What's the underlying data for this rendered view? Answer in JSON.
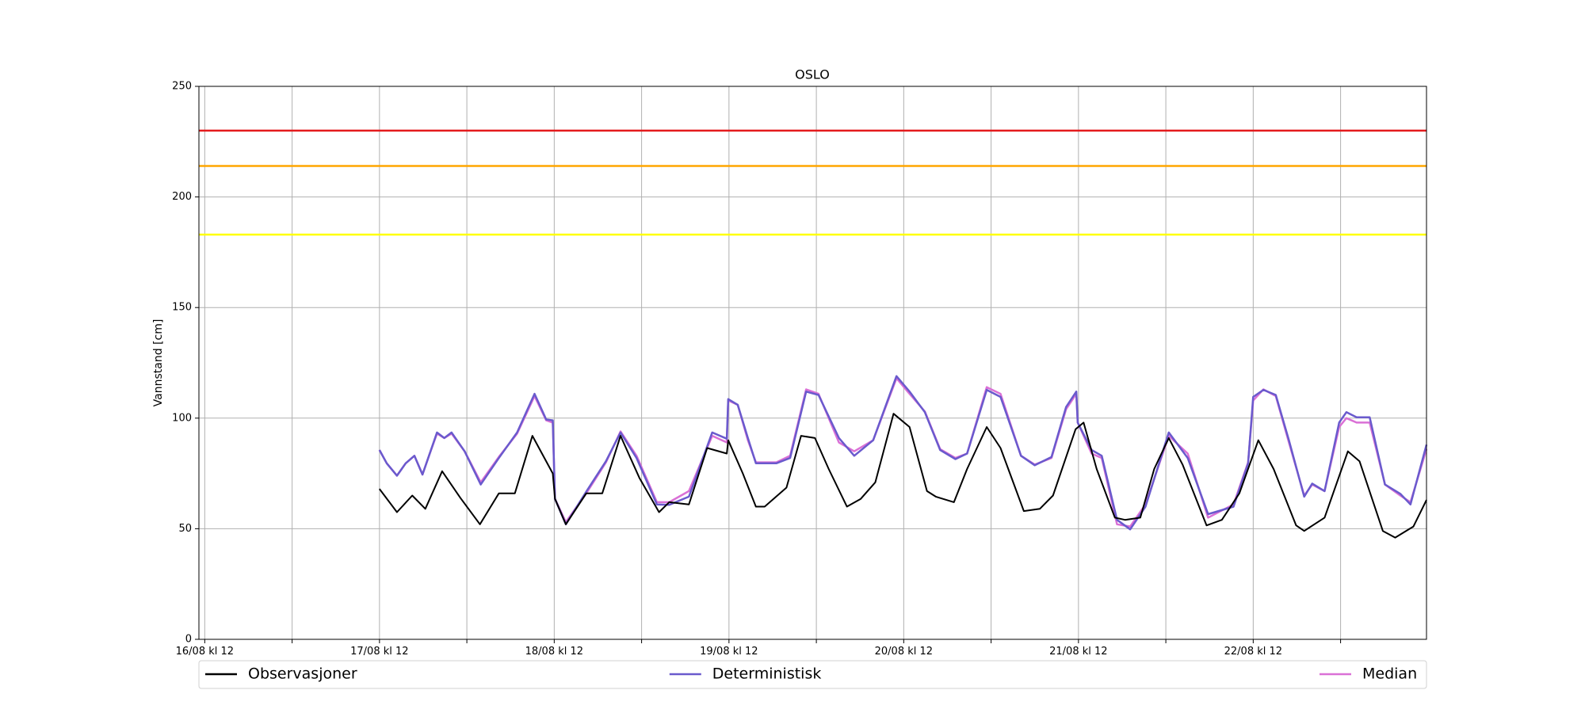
{
  "chart_data": {
    "type": "line",
    "title": "OSLO",
    "y_label": "Vannstand [cm]",
    "xlim": [
      -0.8,
      167.8
    ],
    "xticks": [
      {
        "value": 0,
        "label": "16/08 kl 12"
      },
      {
        "value": 24,
        "label": "17/08 kl 12"
      },
      {
        "value": 48,
        "label": "18/08 kl 12"
      },
      {
        "value": 72,
        "label": "19/08 kl 12"
      },
      {
        "value": 96,
        "label": "20/08 kl 12"
      },
      {
        "value": 120,
        "label": "21/08 kl 12"
      },
      {
        "value": 144,
        "label": "22/08 kl 12"
      }
    ],
    "xminor_ticks": [
      12,
      36,
      60,
      84,
      108,
      132,
      156
    ],
    "ylim": [
      0,
      250
    ],
    "yticks": [
      0,
      50,
      100,
      150,
      200,
      250
    ],
    "grid": true,
    "legend": "bottom",
    "hlines": [
      {
        "value": 230,
        "color": "#e41a1c"
      },
      {
        "value": 214,
        "color": "#ffa500"
      },
      {
        "value": 183,
        "color": "#ffff00"
      }
    ],
    "series": [
      {
        "name": "Observasjoner",
        "color": "#000000",
        "x": [
          24,
          26.4,
          28.5,
          30.3,
          32.6,
          35.1,
          37.8,
          40.4,
          42.6,
          45,
          47.8,
          48.1,
          49.6,
          52.4,
          54.6,
          57.1,
          59.7,
          62.4,
          63.8,
          66.5,
          69,
          71.7,
          71.9,
          73.9,
          75.7,
          76.9,
          79.9,
          81.9,
          83.8,
          85.7,
          88.2,
          90.1,
          92.1,
          94.6,
          96.8,
          99.2,
          100.4,
          102.9,
          104.7,
          107.4,
          109.3,
          112.5,
          114.7,
          116.5,
          119.6,
          120.7,
          122.5,
          125,
          126.4,
          128.5,
          130.4,
          132.4,
          134.3,
          137.6,
          139.7,
          142.1,
          144.7,
          146.8,
          149.9,
          151,
          153.8,
          157,
          158.6,
          161.8,
          163.5,
          166,
          167.8
        ],
        "values": [
          68,
          57.5,
          65,
          59,
          76,
          64,
          52,
          66,
          66,
          92,
          75,
          63.5,
          52,
          66,
          66,
          92,
          73,
          57.5,
          62,
          61,
          86.5,
          84,
          90,
          75,
          60,
          60,
          68.6,
          92,
          91,
          77,
          60,
          63.5,
          71,
          102,
          96,
          67,
          64.5,
          62,
          77,
          96,
          86.5,
          58,
          59,
          65,
          95,
          98,
          77,
          55,
          54,
          55,
          77,
          91,
          79,
          51.5,
          54,
          66,
          90,
          77,
          51.5,
          49,
          55,
          85,
          80.5,
          49,
          46,
          51,
          63
        ]
      },
      {
        "name": "Deterministisk",
        "color": "#6a5acd",
        "x": [
          24,
          25,
          26.4,
          27.6,
          28.8,
          29.9,
          30.8,
          31.9,
          32.9,
          33.9,
          35.7,
          37.9,
          40.4,
          42.9,
          45.3,
          46.9,
          47.8,
          48.1,
          49.6,
          52.4,
          55.1,
          57.1,
          59.3,
          62.1,
          63.8,
          66.5,
          69.7,
          71.7,
          71.9,
          73.2,
          74.6,
          75.7,
          78.5,
          80.4,
          82.6,
          84.3,
          87.1,
          89.2,
          91.8,
          95,
          96.8,
          98.9,
          101,
          103.1,
          104.7,
          107.4,
          109.3,
          112.1,
          114,
          116.3,
          118.3,
          119.7,
          119.9,
          121.8,
          123.2,
          125.3,
          127.1,
          129.2,
          132.4,
          135,
          137.8,
          141.3,
          143.3,
          144,
          145.4,
          147.1,
          148.9,
          151,
          152.1,
          153.8,
          155.8,
          156.8,
          158.2,
          160,
          162.1,
          164.2,
          165.6,
          167.8
        ],
        "values": [
          85.6,
          79.6,
          74,
          79.6,
          83,
          74.5,
          83,
          93.5,
          91,
          93.5,
          85,
          70,
          82,
          93.5,
          111,
          99.4,
          99,
          63.5,
          52,
          66.8,
          80.5,
          93.5,
          82,
          61,
          60.8,
          64.5,
          93.5,
          90.7,
          108.6,
          106,
          91,
          79.6,
          79.6,
          82,
          112,
          110.5,
          91,
          83,
          90,
          119,
          112,
          102.7,
          85.6,
          81.5,
          84,
          112.8,
          109.6,
          83,
          78.7,
          82.4,
          105,
          112,
          98,
          85.6,
          83,
          54,
          49.7,
          60,
          93.5,
          82,
          56.6,
          60,
          79.6,
          109.6,
          112.8,
          110.5,
          90,
          64.5,
          70.4,
          67,
          98,
          102.7,
          100.4,
          100.4,
          70,
          65.8,
          61,
          88
        ]
      },
      {
        "name": "Median",
        "color": "#da70d6",
        "x": [
          24,
          25,
          26.4,
          27.6,
          28.8,
          29.9,
          30.8,
          31.9,
          32.9,
          33.9,
          35.7,
          37.9,
          40.4,
          42.9,
          45.3,
          46.9,
          47.8,
          48.1,
          49.6,
          52.4,
          55.1,
          57.1,
          59.3,
          62.1,
          63.8,
          66.5,
          69.7,
          71.7,
          71.9,
          73.2,
          74.6,
          75.7,
          78.5,
          80.4,
          82.6,
          84.3,
          87.1,
          89.2,
          91.8,
          95,
          96.8,
          98.9,
          101,
          103.1,
          104.7,
          107.4,
          109.3,
          112.1,
          114,
          116.3,
          118.3,
          119.7,
          119.9,
          121.8,
          123.2,
          125.3,
          127.1,
          129.2,
          132.4,
          135,
          137.8,
          141.3,
          143.3,
          144,
          145.4,
          147.1,
          148.9,
          151,
          152.1,
          153.8,
          155.8,
          156.8,
          158.2,
          160,
          162.1,
          164.2,
          165.6,
          167.8
        ],
        "values": [
          85.6,
          79.6,
          74,
          79.6,
          83,
          74.5,
          83,
          93,
          91,
          93,
          85,
          71,
          82.5,
          93,
          110,
          99,
          98,
          63.5,
          53,
          66,
          80,
          94,
          83,
          62,
          62,
          67,
          92,
          89,
          108,
          106,
          90,
          80,
          80,
          83,
          113,
          111,
          89,
          85,
          90,
          118,
          111,
          103,
          86,
          82,
          84,
          114,
          111,
          83,
          79,
          82,
          104,
          111,
          98,
          84,
          82,
          52,
          51,
          61,
          92,
          84,
          55,
          61,
          80,
          108,
          113,
          110,
          89,
          65,
          70,
          67,
          96,
          100,
          98,
          98,
          70,
          65,
          62,
          86
        ]
      }
    ]
  }
}
